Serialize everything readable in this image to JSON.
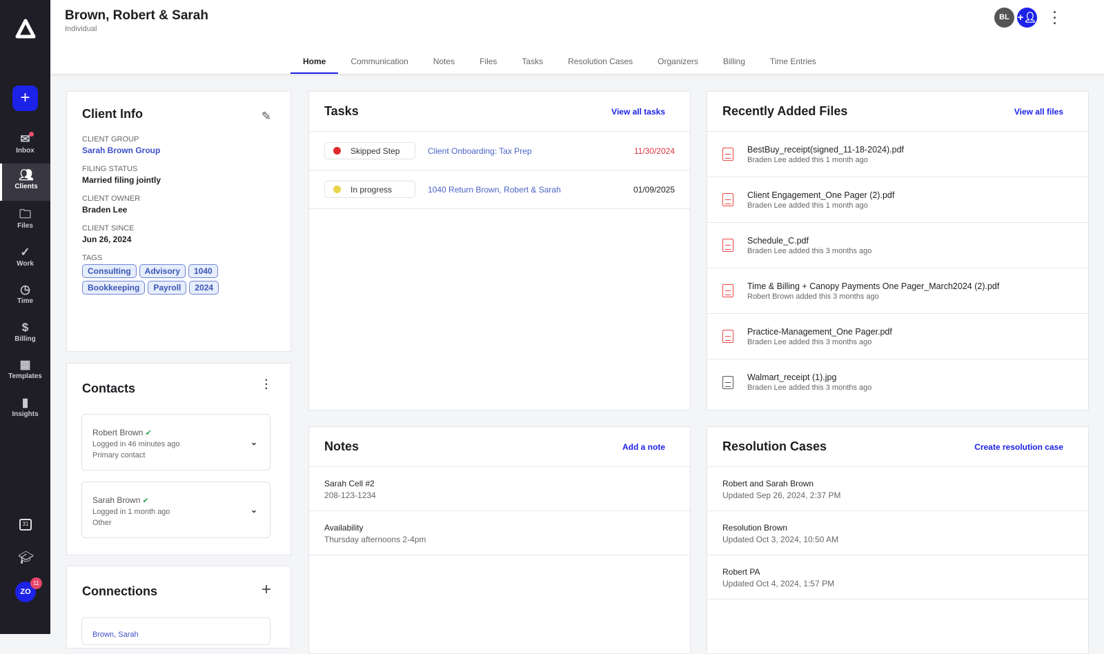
{
  "sidebar": {
    "items": [
      {
        "label": "Inbox",
        "icon": "mail-icon"
      },
      {
        "label": "Clients",
        "icon": "users-icon"
      },
      {
        "label": "Files",
        "icon": "folder-icon"
      },
      {
        "label": "Work",
        "icon": "check-circle-icon"
      },
      {
        "label": "Time",
        "icon": "clock-icon"
      },
      {
        "label": "Billing",
        "icon": "dollar-icon"
      },
      {
        "label": "Templates",
        "icon": "templates-icon"
      },
      {
        "label": "Insights",
        "icon": "bar-chart-icon"
      }
    ],
    "calendar_day": "31",
    "user_initials": "ZO",
    "notification_count": "11"
  },
  "header": {
    "title": "Brown, Robert & Sarah",
    "subtitle": "Individual",
    "avatar_initials": "BL"
  },
  "tabs": [
    "Home",
    "Communication",
    "Notes",
    "Files",
    "Tasks",
    "Resolution Cases",
    "Organizers",
    "Billing",
    "Time Entries"
  ],
  "client_info": {
    "title": "Client Info",
    "fields": [
      {
        "label": "Client Group",
        "value": "Sarah Brown Group"
      },
      {
        "label": "Filing Status",
        "value": "Married filing jointly"
      },
      {
        "label": "Client Owner",
        "value": "Braden Lee"
      },
      {
        "label": "Client Since",
        "value": "Jun 26, 2024"
      }
    ],
    "tags_label": "Tags",
    "tags": [
      "Consulting",
      "Advisory",
      "1040",
      "Bookkeeping",
      "Payroll",
      "2024"
    ]
  },
  "contacts": {
    "title": "Contacts",
    "items": [
      {
        "name": "Robert Brown",
        "login": "Logged in 46 minutes ago",
        "role": "Primary contact"
      },
      {
        "name": "Sarah Brown",
        "login": "Logged in 1 month ago",
        "role": "Other"
      }
    ]
  },
  "connections": {
    "title": "Connections",
    "items": [
      "Brown, Sarah"
    ]
  },
  "tasks": {
    "title": "Tasks",
    "action": "View all tasks",
    "items": [
      {
        "status": "Skipped Step",
        "status_color": "#e02b2b",
        "name": "Client Onboarding: Tax Prep",
        "date": "11/30/2024",
        "date_color": "#d9363e"
      },
      {
        "status": "In progress",
        "status_color": "#e8d64a",
        "name": "1040 Return Brown, Robert & Sarah",
        "date": "01/09/2025",
        "date_color": "#222222"
      }
    ]
  },
  "files": {
    "title": "Recently Added Files",
    "action": "View all files",
    "items": [
      {
        "name": "BestBuy_receipt(signed_11-18-2024).pdf",
        "meta": "Braden Lee added this 1 month ago",
        "type": "pdf"
      },
      {
        "name": "Client Engagement_One Pager (2).pdf",
        "meta": "Braden Lee added this 1 month ago",
        "type": "pdf"
      },
      {
        "name": "Schedule_C.pdf",
        "meta": "Braden Lee added this 3 months ago",
        "type": "pdf"
      },
      {
        "name": "Time & Billing + Canopy Payments One Pager_March2024 (2).pdf",
        "meta": "Robert Brown added this 3 months ago",
        "type": "pdf"
      },
      {
        "name": "Practice-Management_One Pager.pdf",
        "meta": "Braden Lee added this 3 months ago",
        "type": "pdf"
      },
      {
        "name": "Walmart_receipt (1).jpg",
        "meta": "Braden Lee added this 3 months ago",
        "type": "image"
      }
    ]
  },
  "notes": {
    "title": "Notes",
    "action": "Add a note",
    "items": [
      {
        "title": "Sarah Cell #2",
        "body": "208-123-1234"
      },
      {
        "title": "Availability",
        "body": "Thursday afternoons 2-4pm"
      }
    ]
  },
  "resolution": {
    "title": "Resolution Cases",
    "action": "Create resolution case",
    "items": [
      {
        "title": "Robert and Sarah Brown",
        "updated": "Updated Sep 26, 2024, 2:37 PM"
      },
      {
        "title": "Resolution Brown",
        "updated": "Updated Oct 3, 2024, 10:50 AM"
      },
      {
        "title": "Robert PA",
        "updated": "Updated Oct 4, 2024, 1:57 PM"
      }
    ]
  },
  "colors": {
    "accent": "#1d22e8",
    "sidebar": "#1f1e26"
  }
}
